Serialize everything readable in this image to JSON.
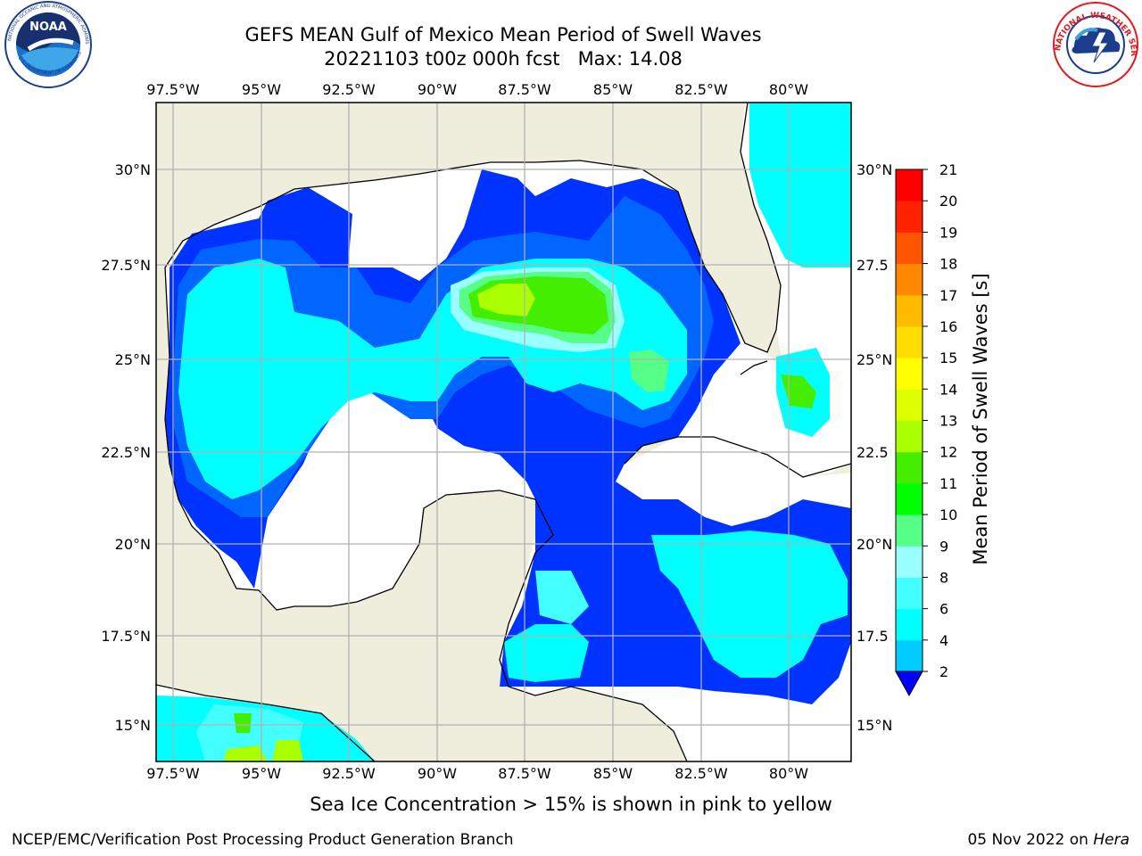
{
  "header": {
    "title_line1": "GEFS MEAN Gulf of Mexico Mean Period of Swell Waves",
    "title_line2": "20221103 t00z 000h fcst   Max: 14.08"
  },
  "logos": {
    "left": {
      "name": "NOAA",
      "ring_text": "NATIONAL OCEANIC AND ATMOSPHERIC ADMINISTRATION · U.S. DEPARTMENT OF COMMERCE",
      "center_text": "NOAA"
    },
    "right": {
      "name": "National Weather Service",
      "ring_text": "NATIONAL WEATHER SERVICE"
    }
  },
  "map": {
    "lon_ticks": [
      "97.5°W",
      "95°W",
      "92.5°W",
      "90°W",
      "87.5°W",
      "85°W",
      "82.5°W",
      "80°W"
    ],
    "lat_ticks_left": [
      "30°N",
      "27.5°N",
      "25°N",
      "22.5°N",
      "20°N",
      "17.5°N",
      "15°N"
    ],
    "lat_ticks_right": [
      "30°N",
      "27.5",
      "25°N",
      "22.5",
      "20°N",
      "17.5",
      "15°N"
    ],
    "lon_range": [
      -98,
      -78.3
    ],
    "lat_range": [
      14,
      31.8
    ],
    "land_color": "#efeedd",
    "no_data_color": "#ffffff"
  },
  "colorbar": {
    "label": "Mean Period of Swell Waves [s]",
    "ticks": [
      "21",
      "20",
      "19",
      "18",
      "17",
      "16",
      "15",
      "14",
      "13",
      "12",
      "11",
      "10",
      "9",
      "8",
      "6",
      "4",
      "2"
    ],
    "colors": [
      "#0033ff",
      "#0066ff",
      "#00ccff",
      "#00ffff",
      "#44ffff",
      "#99ffff",
      "#55ff88",
      "#00ff00",
      "#44ee00",
      "#aaff00",
      "#ddff00",
      "#ffff00",
      "#ffdd00",
      "#ffbb00",
      "#ff8800",
      "#ff5500",
      "#ff2200",
      "#ff0000"
    ],
    "extend": "min"
  },
  "caption": "Sea Ice Concentration > 15% is shown in pink to yellow",
  "footer": {
    "left": "NCEP/EMC/Verification Post Processing Product Generation Branch",
    "right_date": "05 Nov 2022 on",
    "right_host": "Hera"
  }
}
